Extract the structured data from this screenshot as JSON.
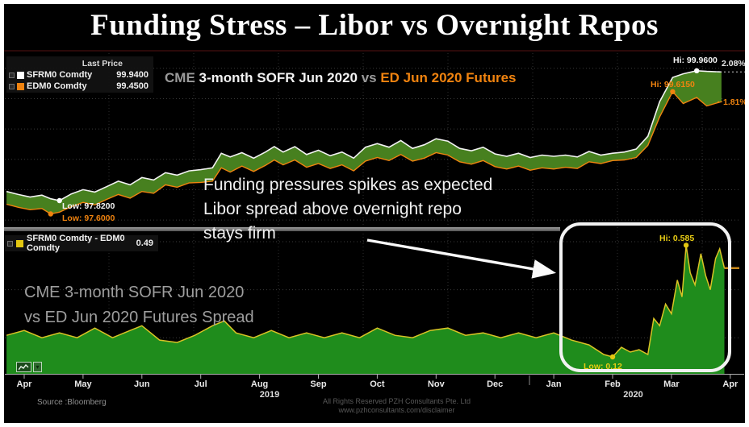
{
  "title": "Funding Stress – Libor vs Overnight Repos",
  "top_panel": {
    "legend": {
      "header": "Last Price",
      "rows": [
        {
          "name": "SFRM0 Comdty",
          "value": "99.9400",
          "swatch": "#ffffff"
        },
        {
          "name": "EDM0 Comdty",
          "value": "99.4500",
          "swatch": "#f0830f"
        }
      ]
    },
    "subtitle": {
      "prefix": "CME ",
      "main": "3-month SOFR Jun 2020 ",
      "vs": "vs ",
      "series2": "ED Jun 2020 Futures"
    },
    "labels": {
      "hi_sofr": "Hi: 99.9600",
      "pct_sofr": "2.08%",
      "hi_ed": "Hi: 99.6150",
      "pct_ed": "1.81%",
      "low_sofr": "Low: 97.8200",
      "low_ed": "Low: 97.6000"
    }
  },
  "bottom_panel": {
    "legend": {
      "name": "SFRM0 Comdty - EDM0 Comdty",
      "value": "0.49",
      "swatch": "#e3c711"
    },
    "label_line1": "CME 3-month SOFR Jun 2020",
    "label_line2": "vs ED Jun 2020 Futures Spread",
    "labels": {
      "hi": "Hi: 0.585",
      "low": "Low: 0.12"
    }
  },
  "annotation": {
    "line1": "Funding pressures spikes as expected",
    "line2": "Libor spread above overnight repo",
    "line3": "stays firm"
  },
  "footer": {
    "source": "Source :Bloomberg",
    "rights": "All Rights Reserved PZH Consultants Pte. Ltd",
    "url": "www.pzhconsultants.com/disclaimer"
  },
  "chart_data": {
    "type": "line",
    "x_unit": "months from Apr 2019 tick (0 = Apr 2019, 12 = Apr 2020)",
    "x_ticks": [
      {
        "m": 0,
        "label": "Apr"
      },
      {
        "m": 1,
        "label": "May"
      },
      {
        "m": 2,
        "label": "Jun"
      },
      {
        "m": 3,
        "label": "Jul"
      },
      {
        "m": 4,
        "label": "Aug"
      },
      {
        "m": 5,
        "label": "Sep"
      },
      {
        "m": 6,
        "label": "Oct"
      },
      {
        "m": 7,
        "label": "Nov"
      },
      {
        "m": 8,
        "label": "Dec"
      },
      {
        "m": 9,
        "label": "Jan"
      },
      {
        "m": 10,
        "label": "Feb"
      },
      {
        "m": 11,
        "label": "Mar"
      },
      {
        "m": 12,
        "label": "Apr"
      }
    ],
    "year_labels": [
      {
        "m": 4.17,
        "label": "2019"
      },
      {
        "m": 10.35,
        "label": "2020"
      }
    ],
    "panels": [
      {
        "id": "prices",
        "title": "CME 3-month SOFR Jun 2020 vs ED Jun 2020 Futures",
        "ylim": [
          97.33,
          100.25
        ],
        "grid_values": [
          97.5,
          98.0,
          98.5,
          99.0,
          99.5,
          100.0
        ],
        "fill_between_color": "#47801f",
        "right_edge_labels": [
          {
            "text": "2.08%",
            "value": 99.94
          },
          {
            "text": "1.81%",
            "value": 99.45
          }
        ],
        "series": [
          {
            "name": "SFRM0 Comdty (3M SOFR Jun 2020 future)",
            "color": "#f2f2f2",
            "last": 99.94,
            "hi": 99.96,
            "low": 97.82,
            "months": [
              -0.3,
              -0.1,
              0.1,
              0.3,
              0.45,
              0.6,
              0.8,
              1,
              1.2,
              1.4,
              1.6,
              1.8,
              2,
              2.2,
              2.4,
              2.6,
              2.8,
              3,
              3.2,
              3.35,
              3.5,
              3.7,
              3.9,
              4.1,
              4.25,
              4.4,
              4.6,
              4.8,
              5,
              5.2,
              5.4,
              5.6,
              5.8,
              6,
              6.2,
              6.4,
              6.6,
              6.8,
              7,
              7.2,
              7.4,
              7.6,
              7.8,
              8,
              8.2,
              8.4,
              8.6,
              8.8,
              9,
              9.2,
              9.4,
              9.6,
              9.8,
              10,
              10.2,
              10.4,
              10.6,
              10.8,
              11.02,
              11.2,
              11.43,
              11.6,
              11.85
            ],
            "values": [
              97.97,
              97.92,
              97.88,
              97.91,
              97.85,
              97.82,
              97.93,
              98.0,
              97.96,
              98.05,
              98.14,
              98.08,
              98.2,
              98.16,
              98.28,
              98.24,
              98.31,
              98.33,
              98.36,
              98.6,
              98.54,
              98.61,
              98.52,
              98.62,
              98.71,
              98.62,
              98.71,
              98.58,
              98.65,
              98.56,
              98.62,
              98.52,
              98.7,
              98.76,
              98.7,
              98.81,
              98.68,
              98.74,
              98.84,
              98.8,
              98.68,
              98.64,
              98.7,
              98.59,
              98.55,
              98.6,
              98.53,
              98.57,
              98.55,
              98.57,
              98.54,
              98.63,
              98.57,
              98.6,
              98.62,
              98.67,
              98.88,
              99.45,
              99.85,
              99.91,
              99.96,
              99.95,
              99.94
            ]
          },
          {
            "name": "EDM0 Comdty (Eurodollar Jun 2020 future)",
            "color": "#f0830f",
            "last": 99.45,
            "hi": 99.615,
            "low": 97.6,
            "months": [
              -0.3,
              -0.1,
              0.1,
              0.3,
              0.45,
              0.6,
              0.8,
              1,
              1.2,
              1.4,
              1.6,
              1.8,
              2,
              2.2,
              2.4,
              2.6,
              2.8,
              3,
              3.2,
              3.35,
              3.5,
              3.7,
              3.9,
              4.1,
              4.25,
              4.4,
              4.6,
              4.8,
              5,
              5.2,
              5.4,
              5.6,
              5.8,
              6,
              6.2,
              6.4,
              6.6,
              6.8,
              7,
              7.2,
              7.4,
              7.6,
              7.8,
              8,
              8.2,
              8.4,
              8.6,
              8.8,
              9,
              9.2,
              9.4,
              9.6,
              9.8,
              10,
              10.2,
              10.4,
              10.6,
              10.8,
              11.02,
              11.2,
              11.43,
              11.6,
              11.85
            ],
            "values": [
              97.76,
              97.71,
              97.67,
              97.69,
              97.6,
              97.63,
              97.72,
              97.79,
              97.75,
              97.84,
              97.92,
              97.86,
              97.97,
              97.94,
              98.08,
              98.04,
              98.11,
              98.12,
              98.14,
              98.36,
              98.29,
              98.39,
              98.3,
              98.4,
              98.49,
              98.41,
              98.49,
              98.37,
              98.43,
              98.35,
              98.41,
              98.31,
              98.47,
              98.53,
              98.48,
              98.58,
              98.47,
              98.52,
              98.61,
              98.57,
              98.46,
              98.42,
              98.48,
              98.38,
              98.34,
              98.39,
              98.32,
              98.36,
              98.34,
              98.37,
              98.35,
              98.46,
              98.43,
              98.48,
              98.49,
              98.53,
              98.73,
              99.2,
              99.615,
              99.42,
              99.52,
              99.38,
              99.45
            ]
          }
        ]
      },
      {
        "id": "spread",
        "title": "SFRM0 Comdty - EDM0 Comdty (futures spread)",
        "ylim": [
          0.05,
          0.62
        ],
        "grid_values": [
          0.2,
          0.4,
          0.6
        ],
        "series": [
          {
            "name": "SOFR - ED spread",
            "color": "#d9c325",
            "fill": "#1f8c1c",
            "last": 0.49,
            "hi": 0.585,
            "low": 0.12,
            "months": [
              -0.3,
              0,
              0.3,
              0.6,
              0.9,
              1.2,
              1.5,
              1.8,
              2,
              2.3,
              2.6,
              2.9,
              3.2,
              3.4,
              3.6,
              3.9,
              4.2,
              4.5,
              4.8,
              5.1,
              5.4,
              5.7,
              6,
              6.3,
              6.6,
              6.9,
              7.2,
              7.5,
              7.8,
              8.1,
              8.4,
              8.7,
              9,
              9.3,
              9.6,
              9.85,
              10,
              10.15,
              10.3,
              10.45,
              10.6,
              10.7,
              10.8,
              10.9,
              11,
              11.1,
              11.18,
              11.25,
              11.32,
              11.4,
              11.5,
              11.58,
              11.66,
              11.75,
              11.82,
              11.9
            ],
            "values": [
              0.21,
              0.23,
              0.2,
              0.22,
              0.2,
              0.24,
              0.2,
              0.23,
              0.25,
              0.19,
              0.18,
              0.21,
              0.25,
              0.27,
              0.22,
              0.2,
              0.23,
              0.2,
              0.22,
              0.2,
              0.22,
              0.2,
              0.24,
              0.21,
              0.2,
              0.23,
              0.24,
              0.21,
              0.22,
              0.2,
              0.22,
              0.2,
              0.22,
              0.19,
              0.17,
              0.13,
              0.12,
              0.16,
              0.14,
              0.15,
              0.13,
              0.28,
              0.25,
              0.34,
              0.3,
              0.44,
              0.37,
              0.585,
              0.47,
              0.42,
              0.55,
              0.46,
              0.4,
              0.53,
              0.57,
              0.49
            ]
          }
        ]
      }
    ],
    "markers": [
      {
        "panel": "prices",
        "m": 11.43,
        "v": 99.96,
        "color": "#ffffff"
      },
      {
        "panel": "prices",
        "m": 11.02,
        "v": 99.615,
        "color": "#f0830f"
      },
      {
        "panel": "prices",
        "m": 0.6,
        "v": 97.82,
        "color": "#ffffff"
      },
      {
        "panel": "prices",
        "m": 0.45,
        "v": 97.6,
        "color": "#f0830f"
      },
      {
        "panel": "spread",
        "m": 11.25,
        "v": 0.585,
        "color": "#e3c711"
      },
      {
        "panel": "spread",
        "m": 10.0,
        "v": 0.12,
        "color": "#e3c711"
      }
    ],
    "colors": {
      "top_fill": "#47801f",
      "spread_fill": "#1f8c1c",
      "sofr_line": "#f2f2f2",
      "ed_line": "#f0830f",
      "spread_line": "#d9c325",
      "last_tick": "#c8871a"
    }
  }
}
